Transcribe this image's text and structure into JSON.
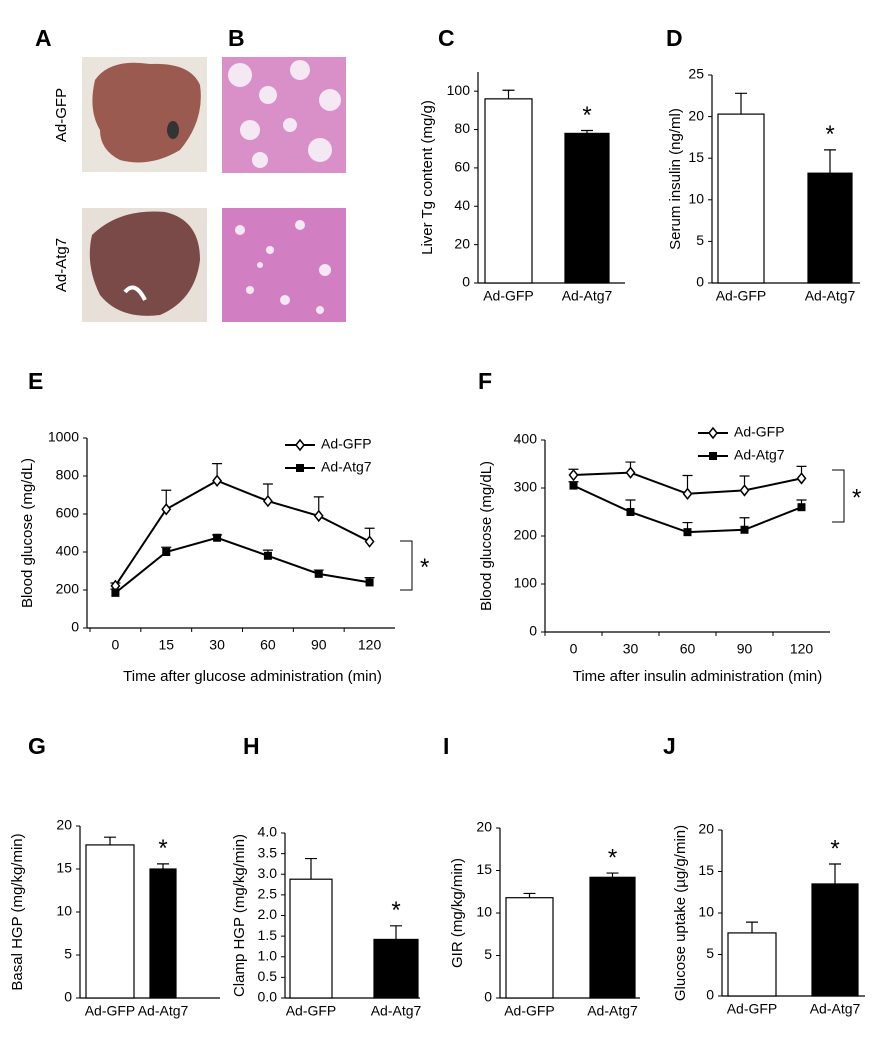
{
  "image_panels": [
    {
      "label": "A"
    },
    {
      "label": "B"
    }
  ],
  "row_labels": [
    "Ad-GFP",
    "Ad-Atg7"
  ],
  "chart_data": [
    {
      "type": "bar",
      "label": "C",
      "y_label": "Liver Tg content (mg/g)",
      "categories": [
        "Ad-GFP",
        "Ad-Atg7"
      ],
      "values": [
        96,
        78
      ],
      "errors": [
        4.5,
        1.5
      ],
      "colors": [
        "#ffffff",
        "#000000"
      ],
      "annotation": "*",
      "ylim": [
        0,
        110
      ],
      "yticks": [
        0,
        20,
        40,
        60,
        80,
        100
      ]
    },
    {
      "type": "bar",
      "label": "D",
      "y_label": "Serum insulin (ng/ml)",
      "categories": [
        "Ad-GFP",
        "Ad-Atg7"
      ],
      "values": [
        20.3,
        13.2
      ],
      "errors": [
        2.5,
        2.8
      ],
      "colors": [
        "#ffffff",
        "#000000"
      ],
      "annotation": "*",
      "ylim": [
        0,
        25
      ],
      "yticks": [
        0,
        5,
        10,
        15,
        20,
        25
      ]
    },
    {
      "type": "line",
      "label": "E",
      "x_label": "Time after glucose administration (min)",
      "y_label": "Blood glucose (mg/dL)",
      "categories": [
        "0",
        "15",
        "30",
        "60",
        "90",
        "120"
      ],
      "series": [
        {
          "name": "Ad-GFP",
          "color": "#000000",
          "marker": "open-diamond",
          "values": [
            222,
            625,
            775,
            668,
            590,
            455
          ],
          "errors": [
            15,
            100,
            90,
            90,
            100,
            70
          ]
        },
        {
          "name": "Ad-Atg7",
          "color": "#000000",
          "marker": "square",
          "values": [
            185,
            400,
            475,
            380,
            285,
            240
          ],
          "errors": [
            20,
            25,
            15,
            30,
            20,
            25
          ]
        }
      ],
      "annotation": "*",
      "ylim": [
        0,
        1000
      ],
      "yticks": [
        0,
        200,
        400,
        600,
        800,
        1000
      ]
    },
    {
      "type": "line",
      "label": "F",
      "x_label": "Time after insulin administration (min)",
      "y_label": "Blood glucose (mg/dL)",
      "categories": [
        "0",
        "30",
        "60",
        "90",
        "120"
      ],
      "series": [
        {
          "name": "Ad-GFP",
          "color": "#000000",
          "marker": "open-diamond",
          "values": [
            327,
            332,
            288,
            295,
            320
          ],
          "errors": [
            12,
            22,
            38,
            30,
            25
          ]
        },
        {
          "name": "Ad-Atg7",
          "color": "#000000",
          "marker": "square",
          "values": [
            305,
            250,
            208,
            213,
            260
          ],
          "errors": [
            8,
            25,
            20,
            25,
            15
          ]
        }
      ],
      "annotation": "*",
      "ylim": [
        0,
        400
      ],
      "yticks": [
        0,
        100,
        200,
        300,
        400
      ]
    },
    {
      "type": "bar",
      "label": "G",
      "y_label": "Basal HGP (mg/kg/min)",
      "categories": [
        "Ad-GFP",
        "Ad-Atg7"
      ],
      "values": [
        17.8,
        15.0
      ],
      "errors": [
        0.9,
        0.6
      ],
      "colors": [
        "#ffffff",
        "#000000"
      ],
      "annotation": "*",
      "ylim": [
        0,
        20
      ],
      "yticks": [
        0,
        5,
        10,
        15,
        20
      ]
    },
    {
      "type": "bar",
      "label": "H",
      "y_label": "Clamp HGP (mg/kg/min)",
      "categories": [
        "Ad-GFP",
        "Ad-Atg7"
      ],
      "values": [
        2.88,
        1.42
      ],
      "errors": [
        0.5,
        0.33
      ],
      "colors": [
        "#ffffff",
        "#000000"
      ],
      "annotation": "*",
      "ylim": [
        0,
        4
      ],
      "yticks": [
        {
          "value": 0,
          "label": "0.0"
        },
        {
          "value": 0.5,
          "label": "0.5"
        },
        {
          "value": 1,
          "label": "1.0"
        },
        {
          "value": 1.5,
          "label": "1.5"
        },
        {
          "value": 2,
          "label": "2.0"
        },
        {
          "value": 2.5,
          "label": "2.5"
        },
        {
          "value": 3,
          "label": "3.0"
        },
        {
          "value": 3.5,
          "label": "3.5"
        },
        {
          "value": 4,
          "label": "4.0"
        }
      ]
    },
    {
      "type": "bar",
      "label": "I",
      "y_label": "GIR (mg/kg/min)",
      "categories": [
        "Ad-GFP",
        "Ad-Atg7"
      ],
      "values": [
        11.8,
        14.2
      ],
      "errors": [
        0.5,
        0.5
      ],
      "colors": [
        "#ffffff",
        "#000000"
      ],
      "annotation": "*",
      "ylim": [
        0,
        20
      ],
      "yticks": [
        0,
        5,
        10,
        15,
        20
      ]
    },
    {
      "type": "bar",
      "label": "J",
      "y_label": "Glucose uptake (µg/g/min)",
      "categories": [
        "Ad-GFP",
        "Ad-Atg7"
      ],
      "values": [
        7.6,
        13.5
      ],
      "errors": [
        1.3,
        2.4
      ],
      "colors": [
        "#ffffff",
        "#000000"
      ],
      "annotation": "*",
      "ylim": [
        0,
        20
      ],
      "yticks": [
        0,
        5,
        10,
        15,
        20
      ]
    }
  ]
}
